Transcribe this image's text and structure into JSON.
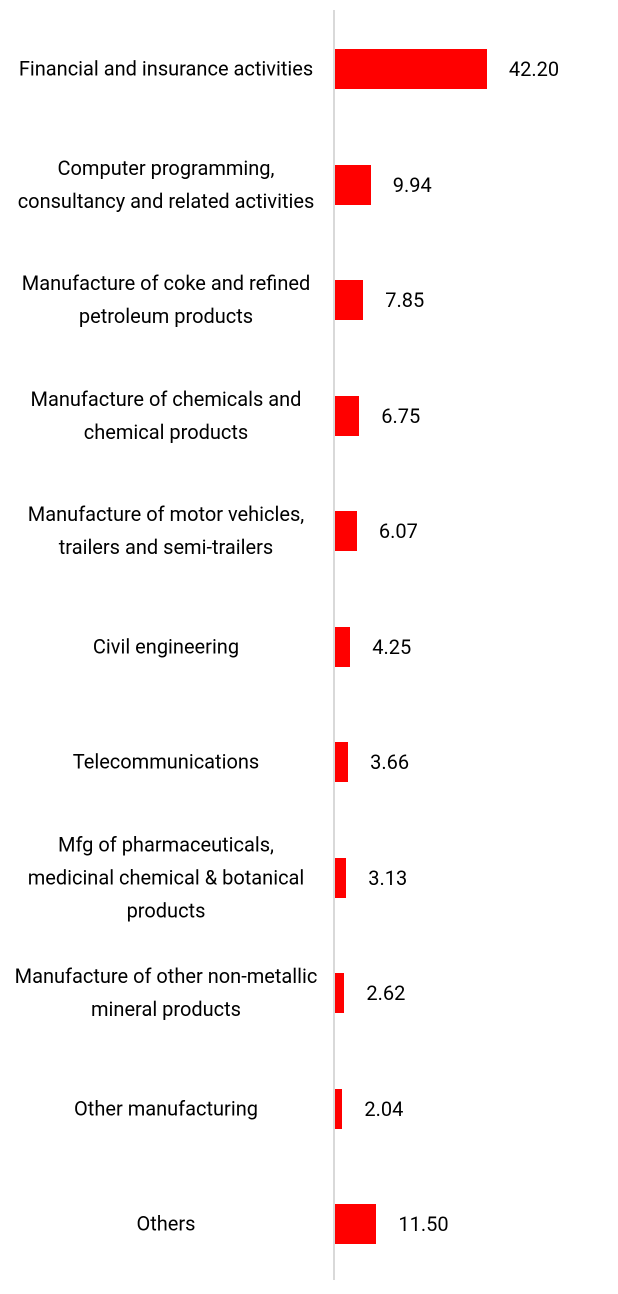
{
  "chart_data": {
    "type": "bar",
    "orientation": "horizontal",
    "color": "#ff0000",
    "categories": [
      "Financial and insurance activities",
      "Computer programming, consultancy and related activities",
      "Manufacture of coke and refined petroleum products",
      "Manufacture of chemicals and chemical products",
      "Manufacture of motor vehicles, trailers and semi-trailers",
      "Civil engineering",
      "Telecommunications",
      "Mfg of pharmaceuticals, medicinal chemical & botanical products",
      "Manufacture of other non-metallic mineral products",
      "Other manufacturing",
      "Others"
    ],
    "values": [
      42.2,
      9.94,
      7.85,
      6.75,
      6.07,
      4.25,
      3.66,
      3.13,
      2.62,
      2.04,
      11.5
    ],
    "value_labels": [
      "42.20",
      "9.94",
      "7.85",
      "6.75",
      "6.07",
      "4.25",
      "3.66",
      "3.13",
      "2.62",
      "2.04",
      "11.50"
    ]
  }
}
